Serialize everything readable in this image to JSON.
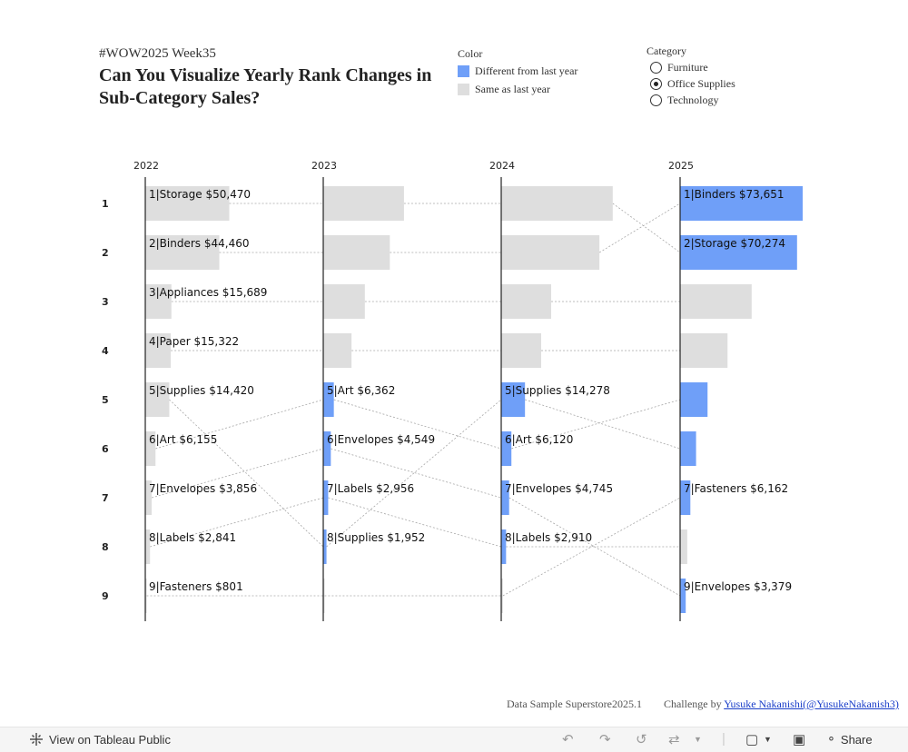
{
  "header": {
    "subtitle": "#WOW2025 Week35",
    "title": "Can You Visualize Yearly Rank Changes in Sub-Category Sales?"
  },
  "legend": {
    "title": "Color",
    "items": [
      {
        "label": "Different from last year",
        "color": "#6f9ff8"
      },
      {
        "label": "Same as last year",
        "color": "#dedede"
      }
    ]
  },
  "category_filter": {
    "title": "Category",
    "options": [
      "Furniture",
      "Office Supplies",
      "Technology"
    ],
    "selected": "Office Supplies"
  },
  "chart_data": {
    "type": "bar",
    "title": "Can You Visualize Yearly Rank Changes in Sub-Category Sales?",
    "years": [
      "2022",
      "2023",
      "2024",
      "2025"
    ],
    "ranks": [
      "1",
      "2",
      "3",
      "4",
      "5",
      "6",
      "7",
      "8",
      "9"
    ],
    "colors": {
      "changed": "#6f9ff8",
      "same": "#dedede"
    },
    "series": [
      {
        "name": "Storage",
        "ranks": [
          1,
          1,
          1,
          2
        ],
        "sales": [
          50470,
          48500,
          67000,
          70274
        ]
      },
      {
        "name": "Binders",
        "ranks": [
          2,
          2,
          2,
          1
        ],
        "sales": [
          44460,
          40000,
          59000,
          73651
        ]
      },
      {
        "name": "Appliances",
        "ranks": [
          3,
          3,
          3,
          3
        ],
        "sales": [
          15689,
          25000,
          30000,
          43000
        ]
      },
      {
        "name": "Paper",
        "ranks": [
          4,
          4,
          4,
          4
        ],
        "sales": [
          15322,
          17000,
          24000,
          28500
        ]
      },
      {
        "name": "Supplies",
        "ranks": [
          5,
          8,
          5,
          6
        ],
        "sales": [
          14420,
          1952,
          14278,
          9600
        ]
      },
      {
        "name": "Art",
        "ranks": [
          6,
          5,
          6,
          5
        ],
        "sales": [
          6155,
          6362,
          6120,
          16500
        ]
      },
      {
        "name": "Envelopes",
        "ranks": [
          7,
          6,
          7,
          9
        ],
        "sales": [
          3856,
          4549,
          4745,
          3379
        ]
      },
      {
        "name": "Labels",
        "ranks": [
          8,
          7,
          8,
          8
        ],
        "sales": [
          2841,
          2956,
          2910,
          4300
        ]
      },
      {
        "name": "Fasteners",
        "ranks": [
          9,
          9,
          9,
          7
        ],
        "sales": [
          801,
          760,
          1000,
          6162
        ]
      }
    ],
    "labels": [
      {
        "year": "2022",
        "rank": 1,
        "text": "1|Storage $50,470"
      },
      {
        "year": "2022",
        "rank": 2,
        "text": "2|Binders $44,460"
      },
      {
        "year": "2022",
        "rank": 3,
        "text": "3|Appliances $15,689"
      },
      {
        "year": "2022",
        "rank": 4,
        "text": "4|Paper $15,322"
      },
      {
        "year": "2022",
        "rank": 5,
        "text": "5|Supplies $14,420"
      },
      {
        "year": "2022",
        "rank": 6,
        "text": "6|Art $6,155"
      },
      {
        "year": "2022",
        "rank": 7,
        "text": "7|Envelopes $3,856"
      },
      {
        "year": "2022",
        "rank": 8,
        "text": "8|Labels $2,841"
      },
      {
        "year": "2022",
        "rank": 9,
        "text": "9|Fasteners $801"
      },
      {
        "year": "2023",
        "rank": 5,
        "text": "5|Art $6,362"
      },
      {
        "year": "2023",
        "rank": 6,
        "text": "6|Envelopes $4,549"
      },
      {
        "year": "2023",
        "rank": 7,
        "text": "7|Labels $2,956"
      },
      {
        "year": "2023",
        "rank": 8,
        "text": "8|Supplies $1,952"
      },
      {
        "year": "2024",
        "rank": 5,
        "text": "5|Supplies $14,278"
      },
      {
        "year": "2024",
        "rank": 6,
        "text": "6|Art $6,120"
      },
      {
        "year": "2024",
        "rank": 7,
        "text": "7|Envelopes $4,745"
      },
      {
        "year": "2024",
        "rank": 8,
        "text": "8|Labels $2,910"
      },
      {
        "year": "2025",
        "rank": 1,
        "text": "1|Binders $73,651"
      },
      {
        "year": "2025",
        "rank": 2,
        "text": "2|Storage $70,274"
      },
      {
        "year": "2025",
        "rank": 7,
        "text": "7|Fasteners $6,162"
      },
      {
        "year": "2025",
        "rank": 9,
        "text": "9|Envelopes $3,379"
      }
    ],
    "grid": false
  },
  "footer": {
    "source": "Data Sample Superstore2025.1",
    "challenge_prefix": "Challenge by",
    "author_link": "Yusuke Nakanishi(@YusukeNakanish3)"
  },
  "toolbar": {
    "view_label": "View on Tableau Public",
    "share_label": "Share",
    "icons": [
      "undo-icon",
      "redo-icon",
      "revert-icon",
      "refresh-icon",
      "download-icon",
      "fullscreen-icon",
      "share-icon"
    ]
  }
}
